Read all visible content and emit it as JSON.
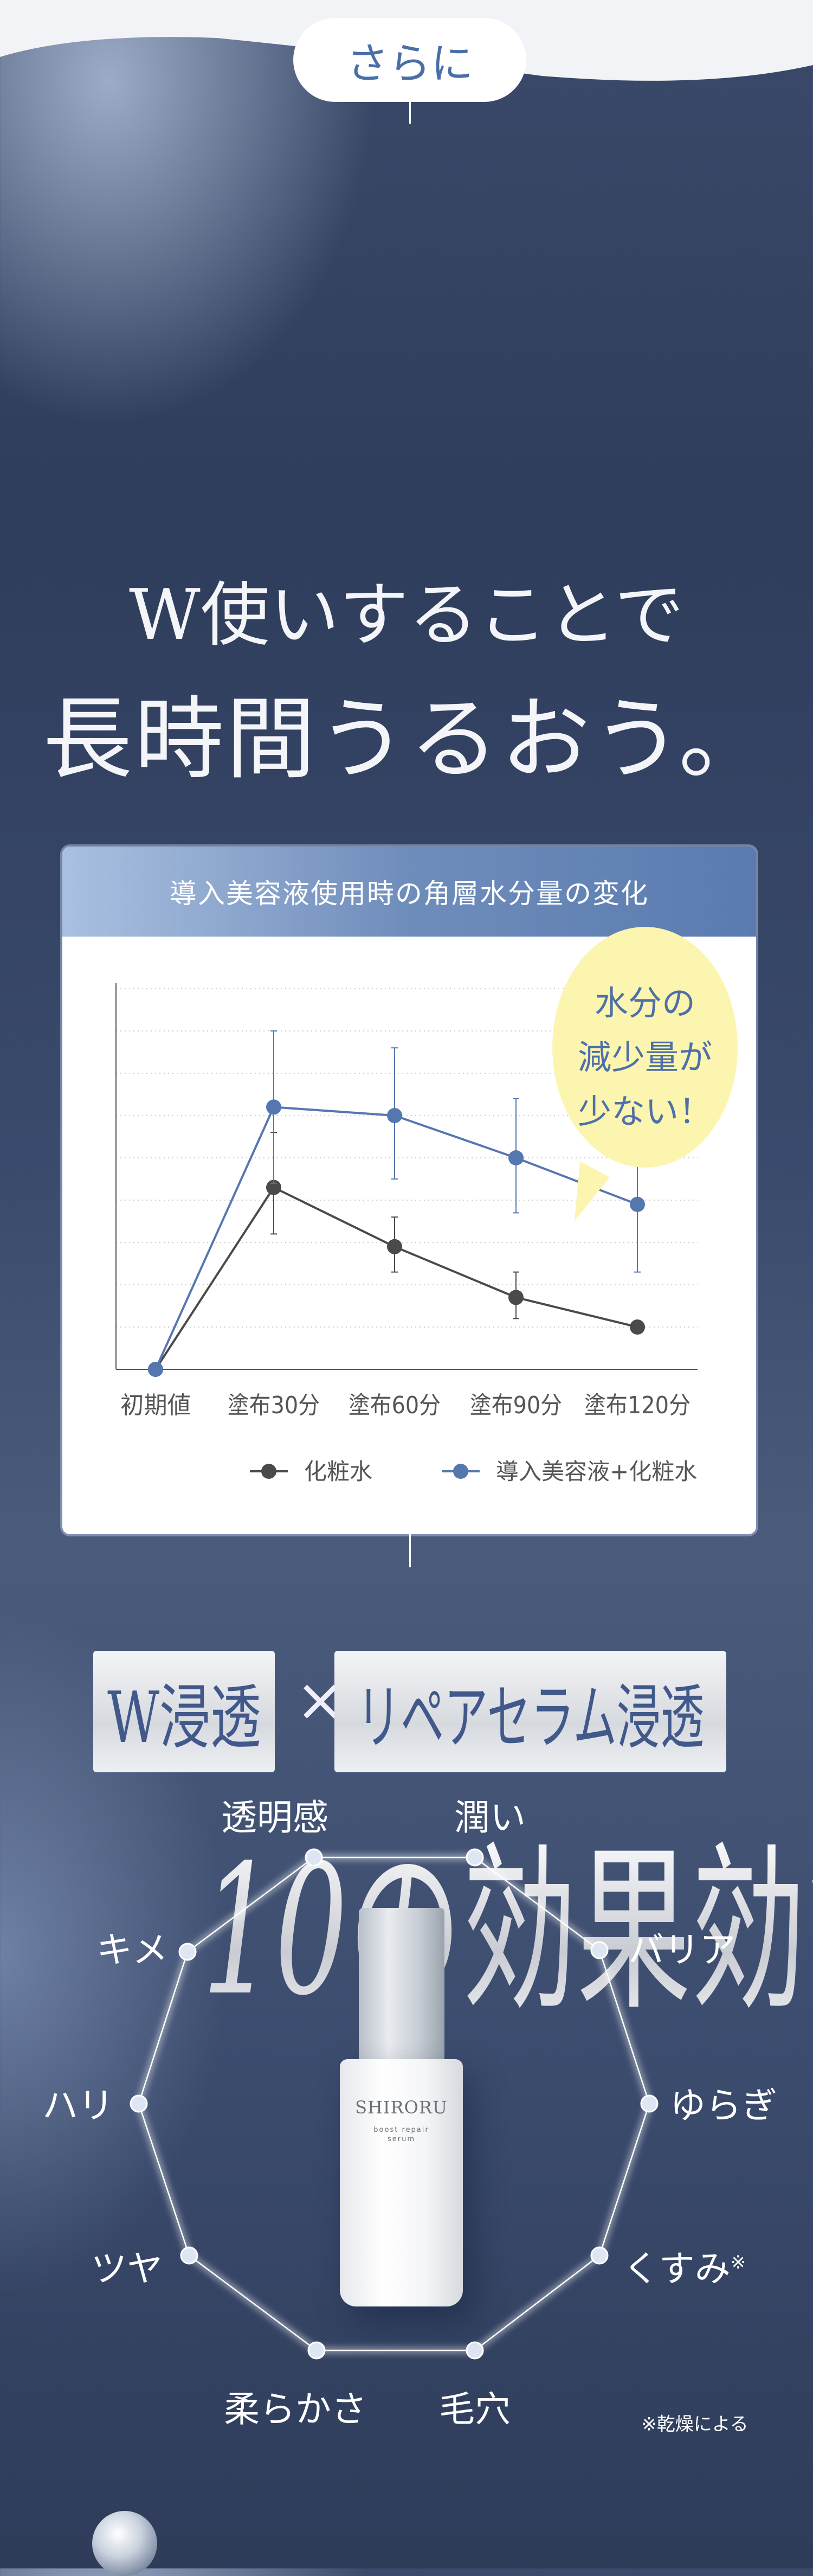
{
  "intro": {
    "pill_label": "さらに"
  },
  "headline": {
    "line1": "W使いすることで",
    "line2": "長時間うるおう。"
  },
  "chart_data": {
    "type": "line",
    "title": "導入美容液使用時の角層水分量の変化",
    "categories": [
      "初期値",
      "塗布30分",
      "塗布60分",
      "塗布90分",
      "塗布120分"
    ],
    "ylim": [
      0,
      9
    ],
    "grid": true,
    "legend_position": "bottom",
    "series": [
      {
        "name": "化粧水",
        "color": "#4a4a4a",
        "values": [
          0,
          4.3,
          2.9,
          1.7,
          1.0
        ],
        "error": [
          null,
          [
            3.2,
            5.6
          ],
          [
            2.3,
            3.6
          ],
          [
            1.2,
            2.3
          ],
          null
        ]
      },
      {
        "name": "導入美容液+化粧水",
        "color": "#5577b0",
        "values": [
          0,
          6.2,
          6.0,
          5.0,
          3.9
        ],
        "error": [
          null,
          [
            4.4,
            8.0
          ],
          [
            4.5,
            7.6
          ],
          [
            3.7,
            6.4
          ],
          [
            2.3,
            5.5
          ]
        ]
      }
    ],
    "callout": {
      "lines": [
        "水分の",
        "減少量が",
        "少ない！"
      ],
      "bg": "#fbf5b0",
      "color": "#4e6fa8"
    }
  },
  "penetration": {
    "badge1": "W浸透",
    "times": "×",
    "badge2": "リペアセラム浸透"
  },
  "effects_title": {
    "number": "10",
    "text": "の効果効能"
  },
  "effects": [
    {
      "label": "透明感"
    },
    {
      "label": "潤い"
    },
    {
      "label": "バリア"
    },
    {
      "label": "ゆらぎ"
    },
    {
      "label": "くすみ",
      "mark": "※"
    },
    {
      "label": "毛穴"
    },
    {
      "label": "柔らかさ"
    },
    {
      "label": "ツヤ"
    },
    {
      "label": "ハリ"
    },
    {
      "label": "キメ"
    }
  ],
  "product": {
    "brand": "SHIRORU",
    "name_line1": "boost repair",
    "name_line2": "serum"
  },
  "footnote": "※乾燥による",
  "colors": {
    "accent": "#4a6fa8",
    "navy": "#34436a"
  }
}
